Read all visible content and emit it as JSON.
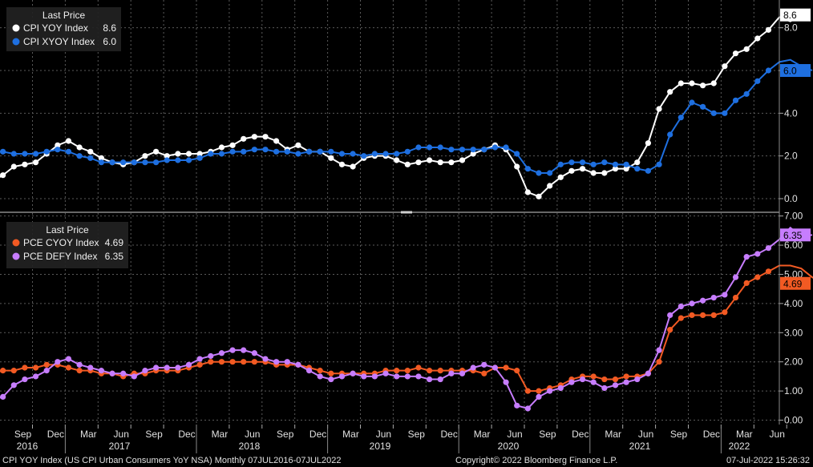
{
  "chart_data": [
    {
      "type": "line",
      "legend_title": "Last Price",
      "legend_position": "top-left",
      "grid": true,
      "ylim": [
        -0.6,
        9.3
      ],
      "yticks": [
        "0.0",
        "2.0",
        "4.0",
        "6.0",
        "8.0"
      ],
      "series": [
        {
          "name": "CPI YOY Index",
          "last": "8.6",
          "color": "#ffffff",
          "values": [
            0.8,
            1.1,
            1.5,
            1.6,
            1.7,
            2.1,
            2.5,
            2.7,
            2.4,
            2.2,
            1.9,
            1.7,
            1.6,
            1.7,
            2.0,
            2.2,
            2.0,
            2.1,
            2.1,
            2.1,
            2.2,
            2.4,
            2.5,
            2.8,
            2.9,
            2.9,
            2.7,
            2.3,
            2.5,
            2.2,
            2.2,
            1.9,
            1.6,
            1.5,
            1.9,
            2.0,
            2.0,
            1.8,
            1.6,
            1.7,
            1.8,
            1.7,
            1.7,
            1.8,
            2.1,
            2.3,
            2.5,
            2.3,
            1.5,
            0.3,
            0.1,
            0.6,
            1.0,
            1.3,
            1.4,
            1.2,
            1.2,
            1.4,
            1.4,
            1.7,
            2.6,
            4.2,
            5.0,
            5.4,
            5.4,
            5.3,
            5.4,
            6.2,
            6.8,
            7.0,
            7.5,
            7.9,
            8.5,
            8.3,
            8.6
          ]
        },
        {
          "name": "CPI XYOY Index",
          "last": "6.0",
          "color": "#1e6fe0",
          "values": [
            2.2,
            2.2,
            2.1,
            2.1,
            2.1,
            2.2,
            2.3,
            2.2,
            2.0,
            1.9,
            1.7,
            1.7,
            1.7,
            1.7,
            1.7,
            1.7,
            1.8,
            1.8,
            1.8,
            1.9,
            2.1,
            2.1,
            2.2,
            2.2,
            2.3,
            2.3,
            2.2,
            2.2,
            2.1,
            2.2,
            2.2,
            2.2,
            2.1,
            2.1,
            2.0,
            2.1,
            2.1,
            2.1,
            2.2,
            2.4,
            2.4,
            2.4,
            2.3,
            2.3,
            2.3,
            2.3,
            2.4,
            2.4,
            2.1,
            1.4,
            1.2,
            1.2,
            1.6,
            1.7,
            1.7,
            1.6,
            1.7,
            1.6,
            1.6,
            1.4,
            1.3,
            1.6,
            3.0,
            3.8,
            4.5,
            4.3,
            4.0,
            4.0,
            4.6,
            4.9,
            5.5,
            6.0,
            6.4,
            6.5,
            6.2,
            6.0
          ]
        }
      ]
    },
    {
      "type": "line",
      "legend_title": "Last Price",
      "legend_position": "top-left",
      "grid": true,
      "ylim": [
        -0.15,
        7.1
      ],
      "yticks": [
        "0.00",
        "1.00",
        "2.00",
        "3.00",
        "4.00",
        "5.00",
        "6.00",
        "7.00"
      ],
      "series": [
        {
          "name": "PCE CYOY Index",
          "last": "4.69",
          "color": "#f25a23",
          "values": [
            1.6,
            1.7,
            1.7,
            1.8,
            1.8,
            1.9,
            1.9,
            1.8,
            1.7,
            1.7,
            1.6,
            1.6,
            1.5,
            1.6,
            1.6,
            1.7,
            1.7,
            1.7,
            1.8,
            1.9,
            2.0,
            2.0,
            2.0,
            2.0,
            2.0,
            2.0,
            1.9,
            1.9,
            1.9,
            1.8,
            1.7,
            1.6,
            1.6,
            1.6,
            1.6,
            1.6,
            1.7,
            1.7,
            1.7,
            1.8,
            1.7,
            1.7,
            1.7,
            1.7,
            1.7,
            1.6,
            1.8,
            1.8,
            1.7,
            1.0,
            1.0,
            1.1,
            1.2,
            1.4,
            1.5,
            1.5,
            1.4,
            1.4,
            1.5,
            1.5,
            1.6,
            2.0,
            3.1,
            3.5,
            3.6,
            3.6,
            3.6,
            3.7,
            4.2,
            4.7,
            4.9,
            5.1,
            5.3,
            5.3,
            5.2,
            4.9,
            4.69
          ]
        },
        {
          "name": "PCE DEFY Index",
          "last": "6.35",
          "color": "#c77dff",
          "values": [
            0.7,
            0.8,
            1.2,
            1.4,
            1.5,
            1.7,
            2.0,
            2.1,
            1.9,
            1.8,
            1.7,
            1.6,
            1.6,
            1.5,
            1.7,
            1.8,
            1.8,
            1.8,
            1.9,
            2.1,
            2.2,
            2.3,
            2.4,
            2.4,
            2.3,
            2.1,
            2.0,
            2.0,
            1.9,
            1.7,
            1.5,
            1.4,
            1.5,
            1.6,
            1.5,
            1.5,
            1.6,
            1.5,
            1.5,
            1.5,
            1.4,
            1.4,
            1.6,
            1.6,
            1.8,
            1.9,
            1.8,
            1.3,
            0.5,
            0.4,
            0.8,
            1.0,
            1.1,
            1.3,
            1.4,
            1.3,
            1.1,
            1.2,
            1.3,
            1.4,
            1.6,
            2.4,
            3.6,
            3.9,
            4.0,
            4.1,
            4.2,
            4.3,
            4.9,
            5.6,
            5.7,
            5.9,
            6.2,
            6.6,
            6.3,
            6.35
          ]
        }
      ]
    }
  ],
  "x_axis": {
    "months": [
      "Sep",
      "Dec",
      "Mar",
      "Jun",
      "Sep",
      "Dec",
      "Mar",
      "Jun",
      "Sep",
      "Dec",
      "Mar",
      "Jun",
      "Sep",
      "Dec",
      "Mar",
      "Jun",
      "Sep",
      "Dec",
      "Mar",
      "Jun",
      "Sep",
      "Dec",
      "Mar",
      "Jun"
    ],
    "years": [
      "2016",
      "2017",
      "2018",
      "2019",
      "2020",
      "2021",
      "2022"
    ]
  },
  "footer": {
    "left": "CPI YOY Index (US CPI Urban Consumers YoY NSA)  Monthly 07JUL2016-07JUL2022",
    "center": "Copyright© 2022 Bloomberg Finance L.P.",
    "right": "07-Jul-2022 15:26:32"
  }
}
